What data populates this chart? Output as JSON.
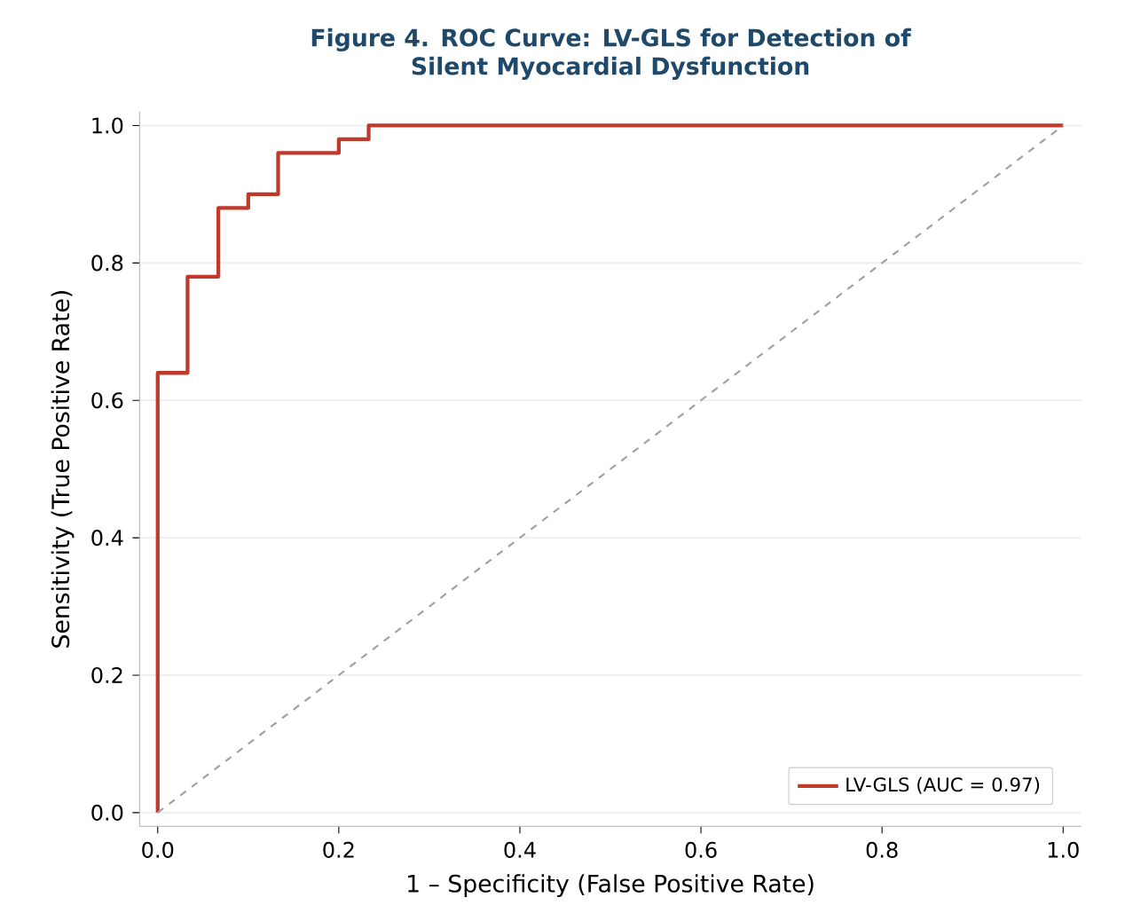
{
  "chart_data": {
    "type": "step",
    "title": "Figure 4. ROC Curve: LV-GLS for Detection of\nSilent Myocardial Dysfunction",
    "xlabel": "1 – Specificity (False Positive Rate)",
    "ylabel": "Sensitivity (True Positive Rate)",
    "series": [
      {
        "name": "LV-GLS (AUC = 0.97)",
        "color": "#c0392b",
        "x": [
          0,
          0,
          0.033,
          0.067,
          0.1,
          0.133,
          0.2,
          0.233,
          1.0
        ],
        "values": [
          0,
          0.64,
          0.78,
          0.88,
          0.9,
          0.96,
          0.98,
          1.0,
          1.0
        ]
      },
      {
        "type": "line",
        "color": "#a0a0a0",
        "line_style": "dashed",
        "x": [
          0,
          1
        ],
        "values": [
          0,
          1
        ]
      }
    ],
    "xlim": [
      -0.02,
      1.02
    ],
    "ylim": [
      -0.02,
      1.02
    ],
    "xticks": [
      {
        "value": 0,
        "label": "0.0"
      },
      0.2,
      0.4,
      0.6,
      0.8,
      {
        "value": 1,
        "label": "1.0"
      }
    ],
    "yticks": [
      {
        "value": 0,
        "label": "0.0"
      },
      0.2,
      0.4,
      0.6,
      0.8,
      {
        "value": 1,
        "label": "1.0"
      }
    ],
    "grid": "y",
    "legend": "bottom right"
  }
}
